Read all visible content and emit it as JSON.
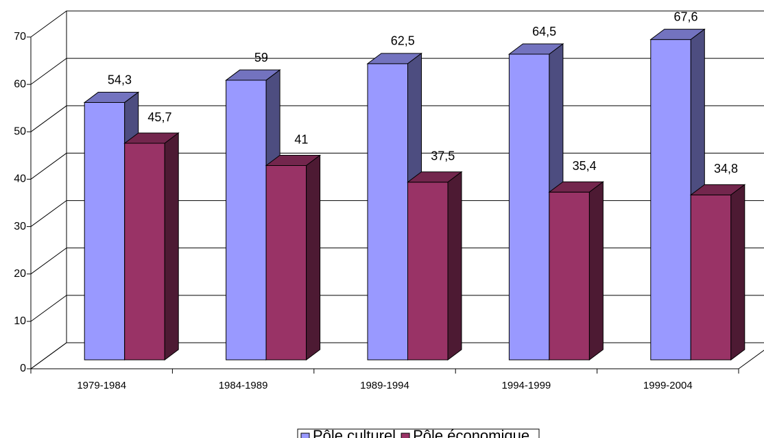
{
  "chart_data": {
    "type": "bar3d",
    "categories": [
      "1979-1984",
      "1984-1989",
      "1989-1994",
      "1994-1999",
      "1999-2004"
    ],
    "series": [
      {
        "name": "Pôle culturel",
        "color": "#9999ff",
        "values": [
          54.3,
          59,
          62.5,
          64.5,
          67.6
        ],
        "value_labels": [
          "54,3",
          "59",
          "62,5",
          "64,5",
          "67,6"
        ]
      },
      {
        "name": "Pôle économique",
        "color": "#993366",
        "values": [
          45.7,
          41,
          37.5,
          35.4,
          34.8
        ],
        "value_labels": [
          "45,7",
          "41",
          "37,5",
          "35,4",
          "34,8"
        ]
      }
    ],
    "ylim": [
      0,
      70
    ],
    "yticks": [
      0,
      10,
      20,
      30,
      40,
      50,
      60,
      70
    ],
    "grid": true,
    "legend": "bottom"
  }
}
